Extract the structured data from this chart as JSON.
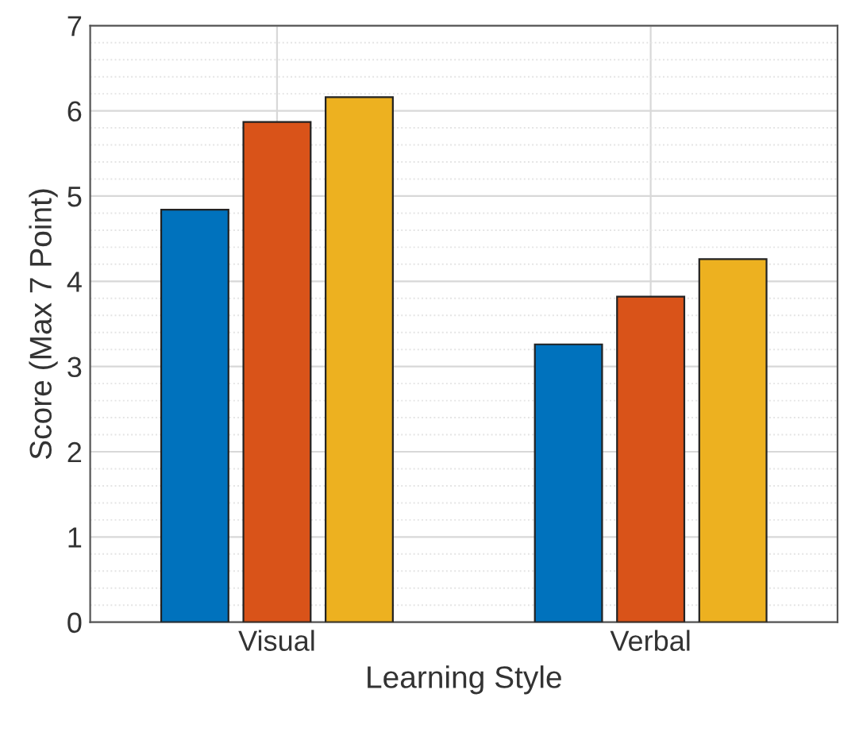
{
  "chart_data": {
    "type": "bar",
    "xlabel": "Learning Style",
    "ylabel": "Score (Max 7 Point)",
    "categories": [
      "Visual",
      "Verbal"
    ],
    "series": [
      {
        "color": "#0072bd",
        "values": [
          4.84,
          3.26
        ]
      },
      {
        "color": "#d95319",
        "values": [
          5.87,
          3.82
        ]
      },
      {
        "color": "#edb120",
        "values": [
          6.16,
          4.26
        ]
      }
    ],
    "ylim": [
      0,
      7
    ],
    "yticks": [
      0,
      1,
      2,
      3,
      4,
      5,
      6,
      7
    ],
    "grid": true,
    "legend": false
  }
}
